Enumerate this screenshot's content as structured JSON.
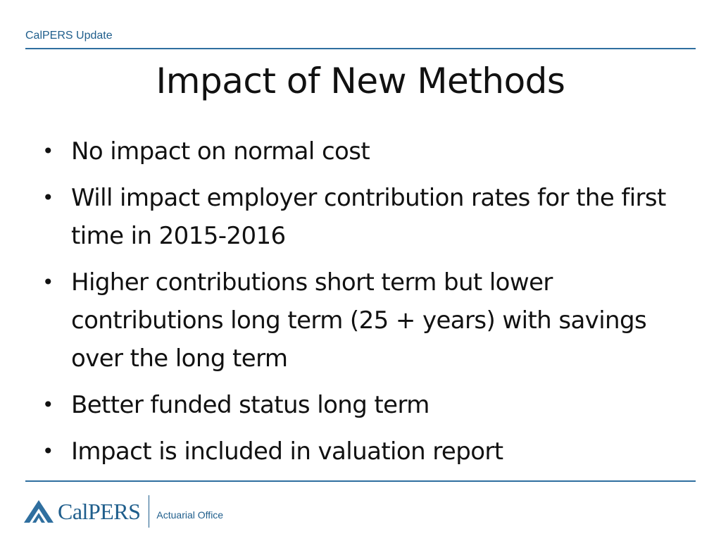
{
  "header": {
    "label": "CalPERS Update"
  },
  "slide": {
    "title": "Impact of New Methods",
    "bullets": [
      "No impact on normal cost",
      "Will impact employer contribution rates for the first time in 2015-2016",
      "Higher contributions short term but lower contributions long term (25 + years) with savings over the long term",
      "Better funded status long term",
      "Impact is included in valuation report"
    ]
  },
  "footer": {
    "logo_text": "CalPERS",
    "logo_subtext": "Actuarial Office"
  },
  "colors": {
    "brand_blue": "#1f5e8c",
    "rule_blue": "#2f6f9f"
  }
}
